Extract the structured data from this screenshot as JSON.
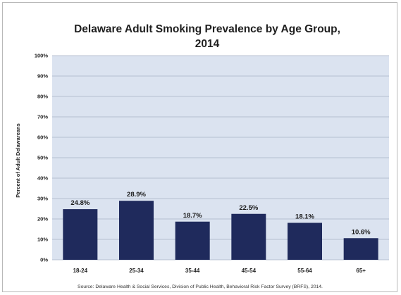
{
  "colors": {
    "plot_bg": "#dbe3f0",
    "bar": "#1f2a5c",
    "grid": "#aab3c4"
  },
  "chart_data": {
    "type": "bar",
    "title_line1": "Delaware Adult Smoking Prevalence by Age Group,",
    "title_line2": "2014",
    "ylabel": "Percent of Adult Delawareans",
    "ylim": [
      0,
      100
    ],
    "yticks": [
      0,
      10,
      20,
      30,
      40,
      50,
      60,
      70,
      80,
      90,
      100
    ],
    "ytick_labels": [
      "0%",
      "10%",
      "20%",
      "30%",
      "40%",
      "50%",
      "60%",
      "70%",
      "80%",
      "90%",
      "100%"
    ],
    "categories": [
      "18-24",
      "25-34",
      "35-44",
      "45-54",
      "55-64",
      "65+"
    ],
    "values": [
      24.8,
      28.9,
      18.7,
      22.5,
      18.1,
      10.6
    ],
    "data_labels": [
      "24.8%",
      "28.9%",
      "18.7%",
      "22.5%",
      "18.1%",
      "10.6%"
    ],
    "grid": true,
    "legend": "none"
  },
  "source": "Source:  Delaware Health & Social Services, Division of Public Health, Behavioral Risk Factor Survey (BRFS), 2014."
}
